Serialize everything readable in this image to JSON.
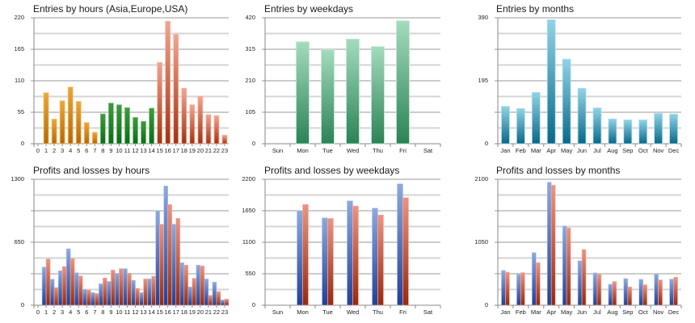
{
  "chart_data": [
    {
      "id": "entries-hours",
      "type": "bar",
      "title": "Entries by hours (Asia,Europe,USA)",
      "xlabel": "",
      "ylabel": "",
      "categories": [
        "0",
        "1",
        "2",
        "3",
        "4",
        "5",
        "6",
        "7",
        "8",
        "9",
        "10",
        "11",
        "12",
        "13",
        "14",
        "15",
        "16",
        "17",
        "18",
        "19",
        "20",
        "21",
        "22",
        "23"
      ],
      "values": [
        0,
        89,
        43,
        75,
        99,
        74,
        37,
        20,
        52,
        71,
        68,
        63,
        46,
        39,
        62,
        142,
        214,
        191,
        97,
        68,
        83,
        51,
        49,
        15
      ],
      "bar_colors_by_session": {
        "asia": {
          "hours": [
            0,
            7
          ],
          "top": "#eaa63c",
          "bottom": "#b66807",
          "border": "#f6c466"
        },
        "europe": {
          "hours": [
            8,
            14
          ],
          "top": "#3f9a3f",
          "bottom": "#0f6a1a",
          "border": "#7bc47b"
        },
        "usa": {
          "hours": [
            15,
            23
          ],
          "top": "#f2a592",
          "bottom": "#a5300f",
          "border": "#f6b8a8"
        }
      },
      "ylim": [
        0,
        220
      ],
      "yticks": [
        "0",
        "55",
        "110",
        "165",
        "220"
      ],
      "minor_gridlines": true,
      "grid": true,
      "legend": "none"
    },
    {
      "id": "entries-weekdays",
      "type": "bar",
      "title": "Entries by weekdays",
      "xlabel": "",
      "ylabel": "",
      "categories": [
        "Sun",
        "Mon",
        "Tue",
        "Wed",
        "Thu",
        "Fri",
        "Sat"
      ],
      "values": [
        0,
        340,
        314,
        349,
        324,
        410,
        0
      ],
      "colors": {
        "top": "#a4dcbd",
        "bottom": "#2b8255",
        "border": "#c2ebd4"
      },
      "ylim": [
        0,
        420
      ],
      "yticks": [
        "0",
        "105",
        "210",
        "315",
        "420"
      ],
      "minor_gridlines": true,
      "grid": true,
      "legend": "none"
    },
    {
      "id": "entries-months",
      "type": "bar",
      "title": "Entries by months",
      "xlabel": "",
      "ylabel": "",
      "categories": [
        "Jan",
        "Feb",
        "Mar",
        "Apr",
        "May",
        "Jun",
        "Jul",
        "Aug",
        "Sep",
        "Oct",
        "Nov",
        "Dec"
      ],
      "values": [
        116,
        109,
        159,
        384,
        262,
        172,
        111,
        77,
        74,
        74,
        94,
        92
      ],
      "colors": {
        "top": "#92d3e6",
        "bottom": "#08688a",
        "border": "#b4e2ef"
      },
      "ylim": [
        0,
        390
      ],
      "yticks": [
        "0",
        "195",
        "390"
      ],
      "minor_gridlines": true,
      "grid": true,
      "legend": "none"
    },
    {
      "id": "pl-hours",
      "type": "bar",
      "title": "Profits and losses by hours",
      "xlabel": "",
      "ylabel": "",
      "categories": [
        "0",
        "1",
        "2",
        "3",
        "4",
        "5",
        "6",
        "7",
        "8",
        "9",
        "10",
        "11",
        "12",
        "13",
        "14",
        "15",
        "16",
        "17",
        "18",
        "19",
        "20",
        "21",
        "22",
        "23"
      ],
      "series": [
        {
          "name": "Profits",
          "values": [
            0,
            394,
            269,
            356,
            583,
            336,
            164,
            131,
            222,
            247,
            331,
            378,
            258,
            131,
            272,
            978,
            1231,
            836,
            439,
            189,
            414,
            272,
            239,
            56
          ],
          "top": "#8ea9de",
          "bottom": "#223f96",
          "border": "#b3c6ec"
        },
        {
          "name": "Losses",
          "values": [
            0,
            478,
            183,
            400,
            483,
            303,
            158,
            122,
            281,
            364,
            378,
            331,
            175,
            272,
            300,
            836,
            1039,
            897,
            414,
            278,
            406,
            103,
            142,
            64
          ],
          "top": "#ec9483",
          "bottom": "#96290e",
          "border": "#f4b5a8"
        }
      ],
      "ylim": [
        0,
        1300
      ],
      "yticks": [
        "0",
        "650",
        "1300"
      ],
      "minor_gridlines": true,
      "grid": true,
      "legend": "none"
    },
    {
      "id": "pl-weekdays",
      "type": "bar",
      "title": "Profits and losses by weekdays",
      "xlabel": "",
      "ylabel": "",
      "categories": [
        "Sun",
        "Mon",
        "Tue",
        "Wed",
        "Thu",
        "Fri",
        "Sat"
      ],
      "series": [
        {
          "name": "Profits",
          "values": [
            0,
            1648,
            1526,
            1823,
            1696,
            2120,
            0
          ],
          "top": "#8ea9de",
          "bottom": "#223f96",
          "border": "#b3c6ec"
        },
        {
          "name": "Losses",
          "values": [
            0,
            1760,
            1516,
            1733,
            1577,
            1880,
            0
          ],
          "top": "#ec9483",
          "bottom": "#96290e",
          "border": "#f4b5a8"
        }
      ],
      "ylim": [
        0,
        2200
      ],
      "yticks": [
        "0",
        "550",
        "1100",
        "1650",
        "2200"
      ],
      "minor_gridlines": true,
      "grid": true,
      "legend": "none"
    },
    {
      "id": "pl-months",
      "type": "bar",
      "title": "Profits and losses by months",
      "xlabel": "",
      "ylabel": "",
      "categories": [
        "Jan",
        "Feb",
        "Mar",
        "Apr",
        "May",
        "Jun",
        "Jul",
        "Aug",
        "Sep",
        "Oct",
        "Nov",
        "Dec"
      ],
      "series": [
        {
          "name": "Profits",
          "values": [
            580,
            513,
            877,
            2051,
            1322,
            742,
            540,
            351,
            445,
            432,
            522,
            436
          ],
          "top": "#8ea9de",
          "bottom": "#223f96",
          "border": "#b3c6ec"
        },
        {
          "name": "Losses",
          "values": [
            553,
            544,
            711,
            2001,
            1291,
            931,
            517,
            396,
            306,
            342,
            423,
            468
          ],
          "top": "#ec9483",
          "bottom": "#96290e",
          "border": "#f4b5a8"
        }
      ],
      "ylim": [
        0,
        2100
      ],
      "yticks": [
        "0",
        "1050",
        "2100"
      ],
      "minor_gridlines": true,
      "grid": true,
      "legend": "none"
    }
  ],
  "style": {
    "major_grid_color": "#9a9a9a",
    "minor_grid_color": "#d4d4d4",
    "axis_color": "#8a8a8a",
    "background": "#ffffff"
  }
}
